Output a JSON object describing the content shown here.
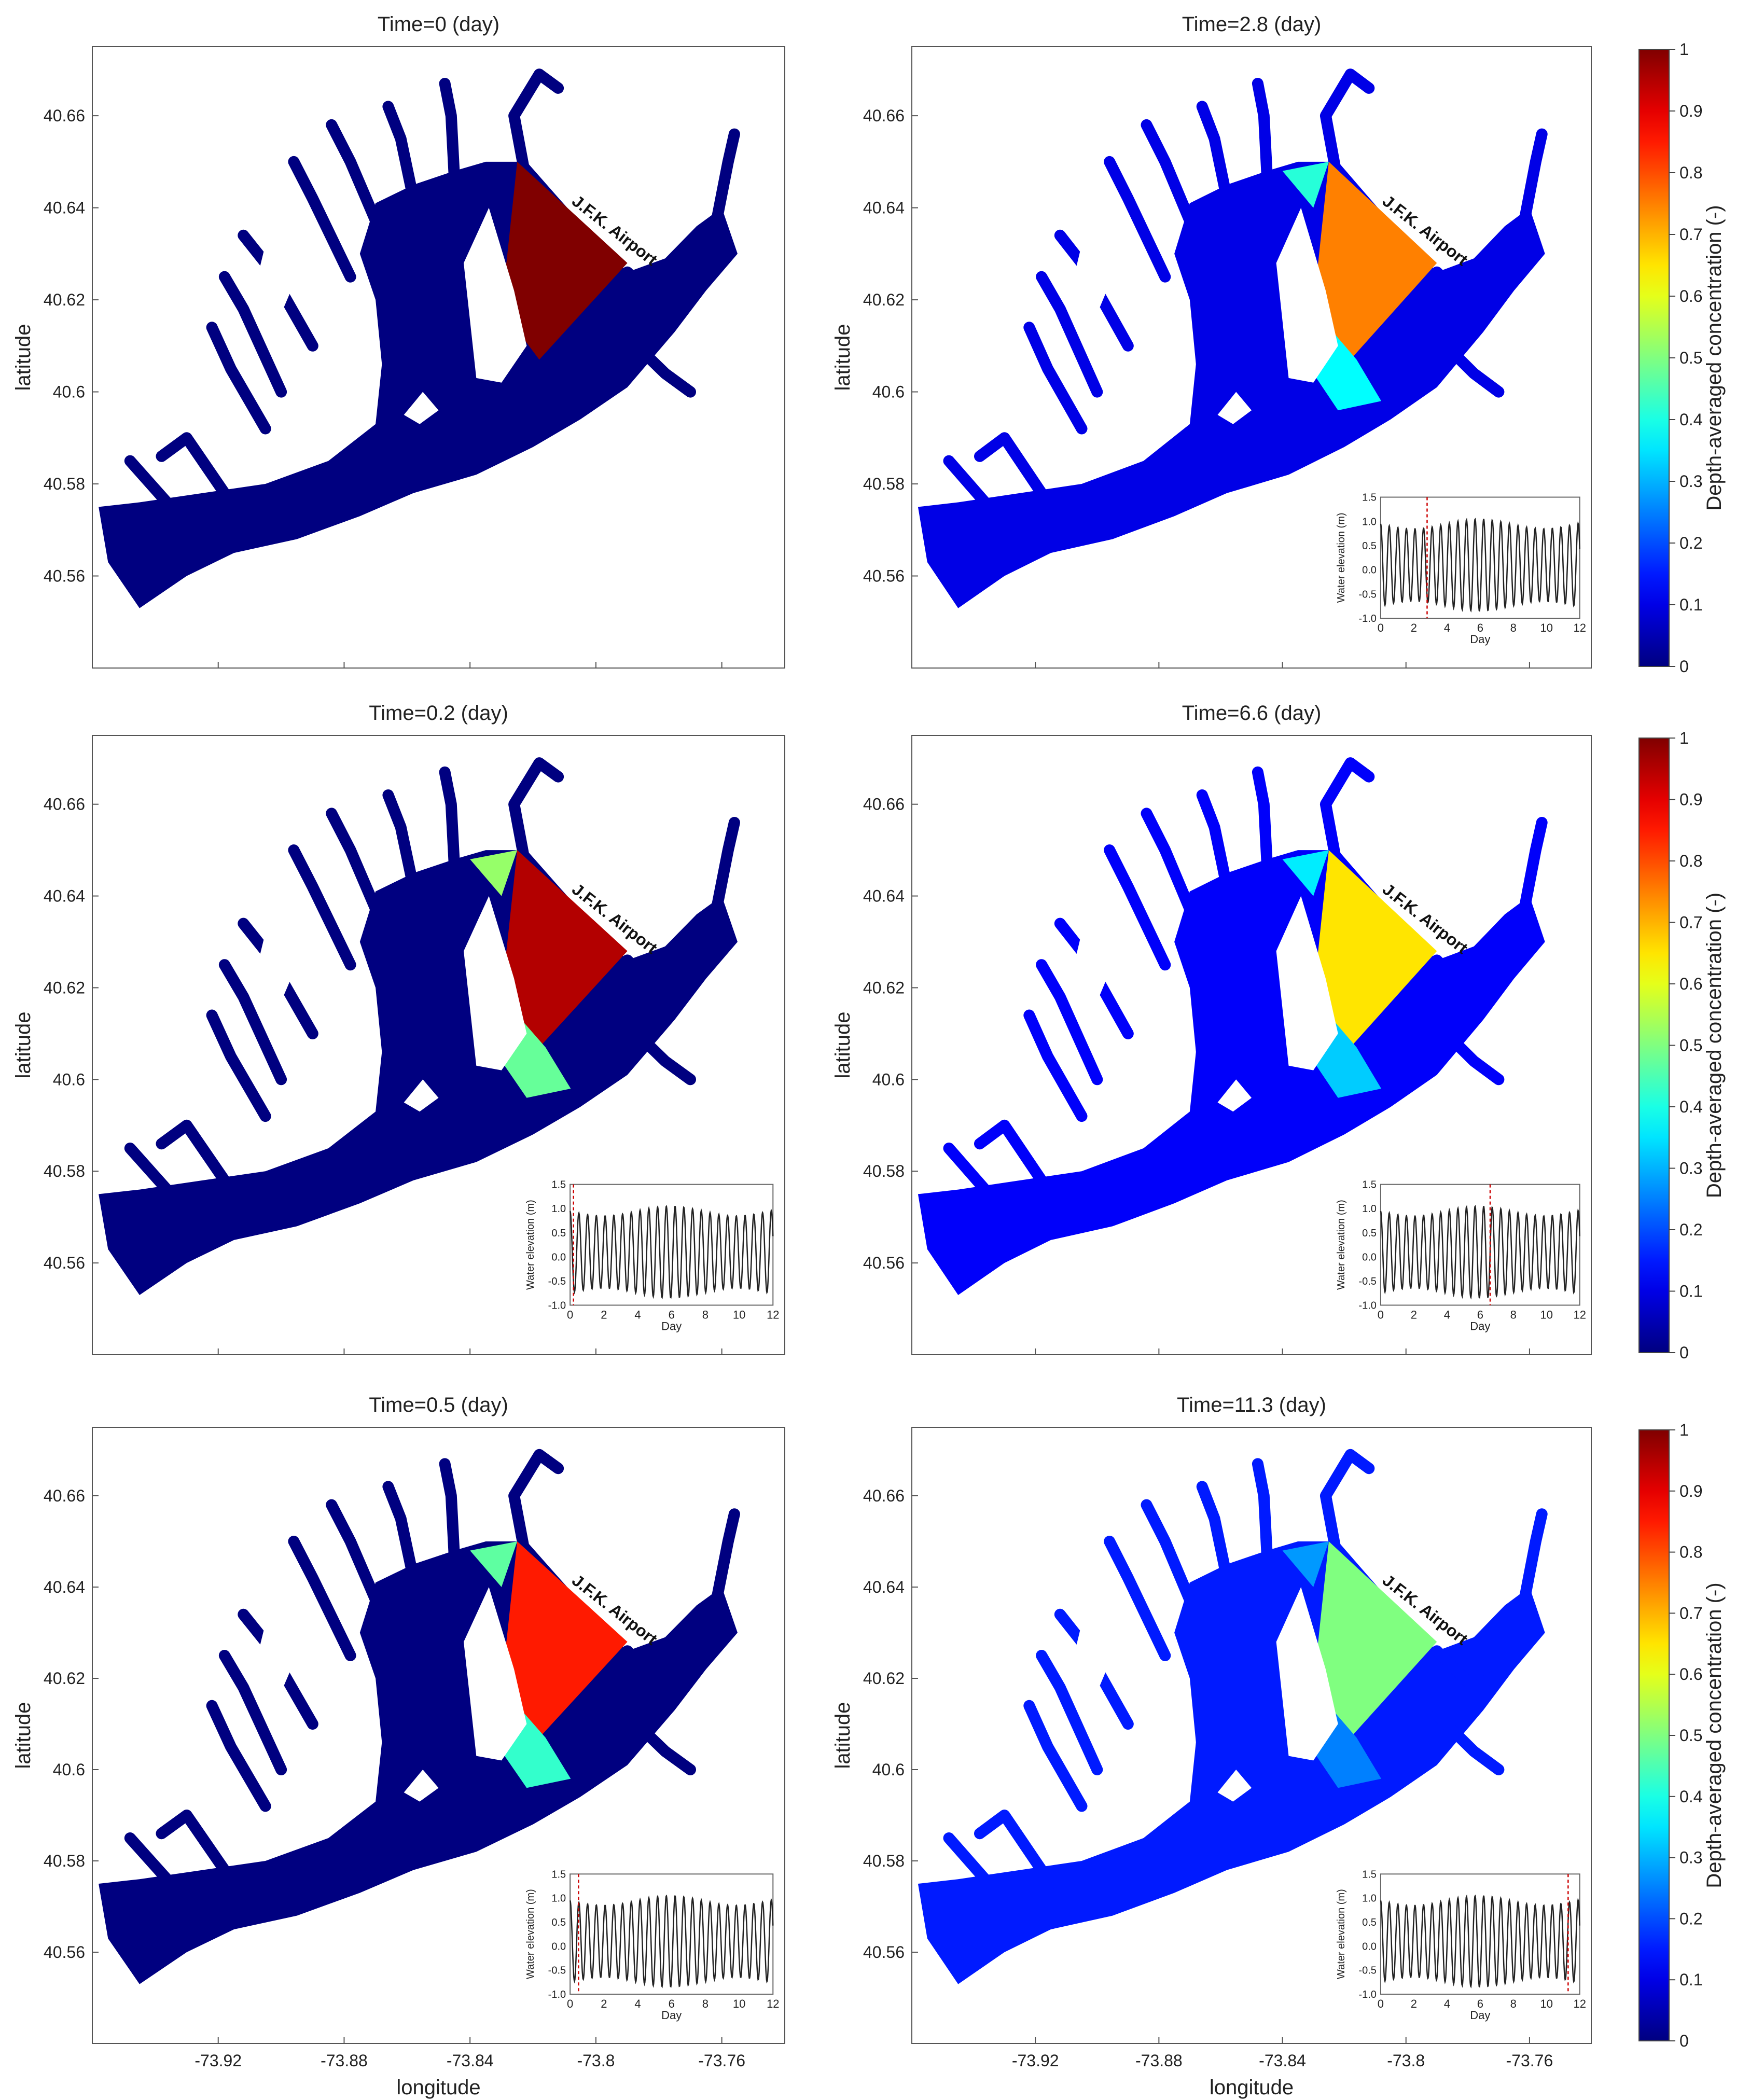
{
  "figure": {
    "site_label": "J.F.K. Airport",
    "lat_label": "latitude",
    "lon_label": "longitude",
    "colorbar_label": "Depth-averaged concentration (-)",
    "lat_ticks": [
      "40.56",
      "40.58",
      "40.6",
      "40.62",
      "40.64",
      "40.66"
    ],
    "lon_ticks": [
      "-73.92",
      "-73.88",
      "-73.84",
      "-73.8",
      "-73.76"
    ],
    "colorbar_ticks": [
      "0",
      "0.1",
      "0.2",
      "0.3",
      "0.4",
      "0.5",
      "0.6",
      "0.7",
      "0.8",
      "0.9",
      "1"
    ],
    "inset_xlabel": "Day",
    "inset_ylabel": "Water elevation (m)",
    "inset_xticks": [
      "0",
      "2",
      "4",
      "6",
      "8",
      "10",
      "12"
    ],
    "inset_yticks": [
      "-1.0",
      "-0.5",
      "0.0",
      "0.5",
      "1.0",
      "1.5"
    ],
    "colors": {
      "low": "#00008f",
      "high": "#d40000",
      "marker": "#cc0000",
      "frame": "#555555"
    }
  },
  "chart_data": {
    "type": "heatmap",
    "panel_titles": [
      "Time=0 (day)",
      "Time=2.8 (day)",
      "Time=0.2 (day)",
      "Time=6.6 (day)",
      "Time=0.5 (day)",
      "Time=11.3 (day)"
    ],
    "panel_times_day": [
      0,
      2.8,
      0.2,
      6.6,
      0.5,
      11.3
    ],
    "panel_order": "row-major: left column 0, 0.2, 0.5 day; right column 2.8, 6.6, 11.3 day",
    "xlim": [
      -73.96,
      -73.74
    ],
    "ylim": [
      40.54,
      40.675
    ],
    "colorbar": {
      "range": [
        0,
        1
      ],
      "colormap": "jet"
    },
    "source_region_concentration": [
      1.0,
      0.75,
      0.95,
      0.65,
      0.85,
      0.5
    ],
    "background_concentration": [
      0.0,
      0.1,
      0.0,
      0.12,
      0.0,
      0.15
    ],
    "water_elevation_inset": {
      "xlim": [
        0,
        12
      ],
      "ylim": [
        -1.0,
        1.5
      ],
      "period_day": 0.5175,
      "amplitude_m": [
        0.95,
        0.75
      ],
      "mean_m": 0.1
    }
  }
}
